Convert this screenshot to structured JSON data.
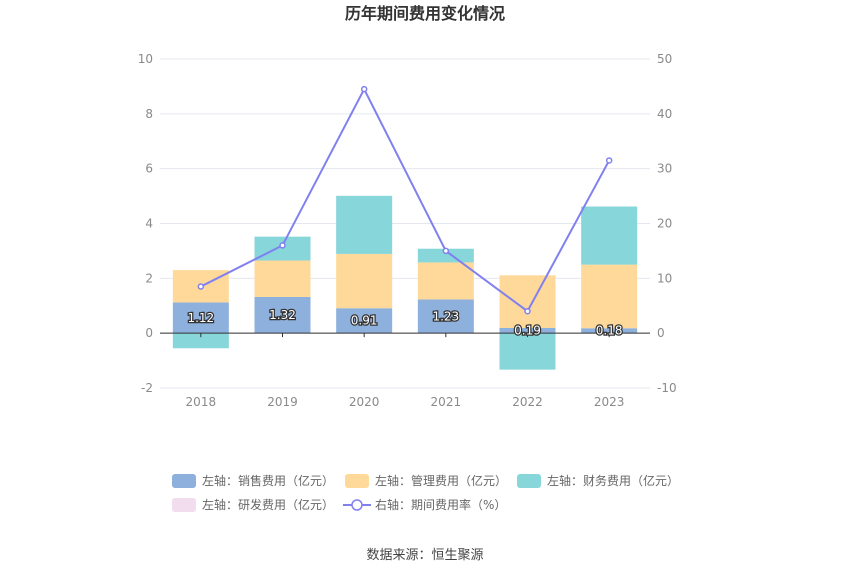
{
  "chart_data": {
    "type": "bar",
    "title": "历年期间费用变化情况",
    "categories": [
      "2018",
      "2019",
      "2020",
      "2021",
      "2022",
      "2023"
    ],
    "series": [
      {
        "name": "左轴：销售费用（亿元）",
        "type": "bar",
        "axis": "left",
        "color": "#8eb0dd",
        "values": [
          1.12,
          1.32,
          0.91,
          1.23,
          0.19,
          0.18
        ]
      },
      {
        "name": "左轴：管理费用（亿元）",
        "type": "bar",
        "axis": "left",
        "color": "#ffd999",
        "values": [
          1.18,
          1.33,
          1.98,
          1.35,
          1.92,
          2.32
        ]
      },
      {
        "name": "左轴：财务费用（亿元）",
        "type": "bar",
        "axis": "left",
        "color": "#87d6da",
        "values": [
          -0.55,
          0.87,
          2.12,
          0.5,
          -1.33,
          2.12
        ]
      },
      {
        "name": "左轴：研发费用（亿元）",
        "type": "bar",
        "axis": "left",
        "color": "#f2ddef",
        "values": [
          0,
          0,
          0,
          0,
          0,
          0
        ]
      },
      {
        "name": "右轴：期间费用率（%）",
        "type": "line",
        "axis": "right",
        "color": "#8080f0",
        "values": [
          8.5,
          16,
          44.5,
          15,
          4,
          31.5
        ]
      }
    ],
    "bar_labels": [
      "1.12",
      "1.32",
      "0.91",
      "1.23",
      "0.19",
      "0.18"
    ],
    "left_axis": {
      "ylim": [
        -2,
        10
      ],
      "ticks": [
        "-2",
        "0",
        "2",
        "4",
        "6",
        "8",
        "10"
      ]
    },
    "right_axis": {
      "ylim": [
        -10,
        50
      ],
      "ticks": [
        "-10",
        "0",
        "10",
        "20",
        "30",
        "40",
        "50"
      ]
    },
    "grid": true,
    "legend_position": "bottom",
    "source": "数据来源：恒生聚源"
  }
}
